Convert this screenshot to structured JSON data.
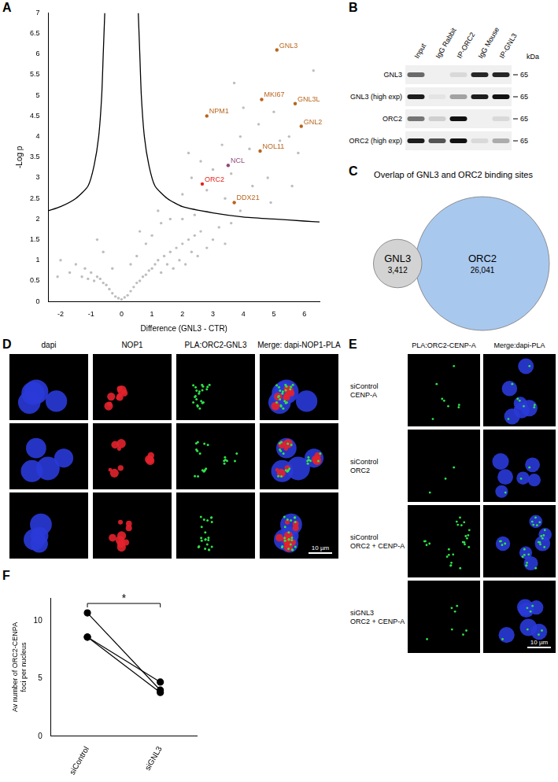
{
  "panel_letters": [
    "A",
    "B",
    "C",
    "D",
    "E",
    "F"
  ],
  "chart_data": [
    {
      "type": "scatter",
      "x_label": "Difference (GNL3 - CTR)",
      "y_label": "-Log p",
      "xlim": [
        -2.4,
        6.5
      ],
      "ylim": [
        0,
        7
      ],
      "xticks": [
        -2,
        -1,
        0,
        1,
        2,
        3,
        4,
        5,
        6
      ],
      "yticks": [
        0,
        0.5,
        1,
        1.5,
        2,
        2.5,
        3,
        3.5,
        4,
        4.5,
        5,
        5.5,
        6,
        6.5,
        7
      ],
      "grid": false,
      "series": [
        {
          "type": "scatter",
          "marker": "circle",
          "color": "#bdbdbd",
          "x": [
            0,
            0.1,
            -0.1,
            0.2,
            -0.2,
            0.3,
            -0.3,
            0.4,
            -0.4,
            0.5,
            -0.5,
            0.6,
            -0.6,
            0.7,
            -0.7,
            0.8,
            -0.8,
            0.9,
            -0.9,
            1.0,
            -1.0,
            1.1,
            -1.1,
            1.2,
            -1.2,
            1.3,
            -1.3,
            1.4,
            1.5,
            -1.5,
            1.6,
            1.7,
            1.8,
            1.9,
            2.0,
            2.1,
            2.2,
            2.3,
            2.4,
            2.5,
            2.6,
            2.8,
            3.0,
            3.2,
            3.4,
            3.6,
            -1.7,
            -2.0,
            -2.1,
            0.5,
            0.8,
            1.0,
            1.3,
            1.6,
            -0.6,
            -0.8,
            0.3,
            -0.3,
            0.6,
            1.2,
            2.0,
            2.4,
            2.0,
            2.3,
            2.6,
            3.0,
            3.3,
            3.6,
            3.9,
            4.2,
            4.5,
            4.8,
            5.0,
            5.2,
            5.5,
            3.9,
            4.3,
            2.8,
            3.4,
            4.0,
            3.7,
            5.8,
            6.3,
            2.2,
            4.9,
            5.6
          ],
          "y": [
            0.05,
            0.1,
            0.08,
            0.15,
            0.12,
            0.25,
            0.2,
            0.35,
            0.3,
            0.45,
            0.4,
            0.5,
            0.45,
            0.6,
            0.55,
            0.65,
            0.6,
            0.75,
            0.5,
            0.8,
            0.7,
            0.9,
            0.55,
            1.0,
            0.8,
            0.7,
            0.6,
            1.1,
            0.9,
            0.9,
            1.2,
            0.8,
            1.3,
            1.0,
            1.4,
            0.9,
            1.5,
            1.2,
            1.6,
            1.1,
            1.7,
            1.3,
            1.5,
            1.8,
            1.4,
            1.9,
            0.7,
            1.0,
            0.6,
            1.1,
            1.4,
            1.6,
            1.9,
            2.0,
            1.2,
            1.5,
            0.9,
            0.8,
            1.7,
            2.2,
            2.0,
            2.1,
            2.6,
            3.0,
            3.4,
            3.2,
            3.8,
            3.1,
            4.0,
            3.7,
            4.3,
            3.0,
            4.6,
            3.9,
            4.0,
            2.2,
            2.8,
            2.7,
            2.5,
            4.7,
            5.3,
            3.6,
            5.6,
            3.6,
            2.4,
            2.8
          ]
        },
        {
          "type": "line",
          "color": "#000000",
          "x": [
            0.55,
            0.6,
            0.65,
            0.75,
            0.9,
            1.1,
            1.5,
            2,
            3,
            4,
            5,
            6,
            6.5
          ],
          "y": [
            7,
            6,
            5,
            4,
            3.3,
            2.8,
            2.5,
            2.3,
            2.15,
            2.05,
            2.0,
            1.95,
            1.93
          ]
        },
        {
          "type": "line",
          "color": "#000000",
          "x": [
            -0.55,
            -0.6,
            -0.65,
            -0.75,
            -0.9,
            -1.1,
            -1.5,
            -2,
            -2.4
          ],
          "y": [
            7,
            6,
            5,
            4,
            3.3,
            2.8,
            2.5,
            2.3,
            2.2
          ]
        }
      ],
      "annotations": [
        {
          "text": "GNL3",
          "x": 5.1,
          "y": 6.1,
          "color": "#b8651e"
        },
        {
          "text": "GNL3L",
          "x": 5.7,
          "y": 4.8,
          "color": "#b8651e"
        },
        {
          "text": "MKI67",
          "x": 4.6,
          "y": 4.9,
          "color": "#b8651e"
        },
        {
          "text": "GNL2",
          "x": 5.9,
          "y": 4.25,
          "color": "#b8651e"
        },
        {
          "text": "NPM1",
          "x": 2.8,
          "y": 4.5,
          "color": "#b8651e"
        },
        {
          "text": "NOL11",
          "x": 4.55,
          "y": 3.65,
          "color": "#b8651e"
        },
        {
          "text": "NCL",
          "x": 3.5,
          "y": 3.3,
          "color": "#8e4a7a"
        },
        {
          "text": "ORC2",
          "x": 2.65,
          "y": 2.85,
          "color": "#e0241b"
        },
        {
          "text": "DDX21",
          "x": 3.7,
          "y": 2.4,
          "color": "#b8651e"
        }
      ]
    },
    {
      "type": "line",
      "y_label": "Av number of ORC2-CENPA foci per nucleus",
      "categories": [
        "siControl",
        "siGNL3"
      ],
      "series": [
        {
          "values": [
            10.7,
            4.0
          ]
        },
        {
          "values": [
            8.6,
            4.7
          ]
        },
        {
          "values": [
            8.6,
            3.8
          ]
        }
      ],
      "color": "#000000",
      "marker": "circle",
      "ylim": [
        0,
        12
      ],
      "yticks": [
        0,
        5,
        10
      ],
      "grid": false,
      "annotation": {
        "text": "*",
        "between": [
          "siControl",
          "siGNL3"
        ]
      }
    }
  ],
  "blot": {
    "lanes": [
      "Input",
      "IgG Rabbit",
      "IP-ORC2",
      "IgG Mouse",
      "IP-GNL3"
    ],
    "rows": [
      "GNL3",
      "GNL3 (high exp)",
      "ORC2",
      "ORC2 (high exp)"
    ],
    "unit": "kDa",
    "markers": [
      65,
      65,
      65,
      65
    ]
  },
  "venn": {
    "title": "Overlap of GNL3 and ORC2 binding sites",
    "sets": [
      {
        "label": "GNL3",
        "count": 3412,
        "count_label": "3,412",
        "color": "#d3d3d3"
      },
      {
        "label": "ORC2",
        "count": 26041,
        "count_label": "26,041",
        "color": "#a9c8ee"
      }
    ]
  },
  "microscopy_d": {
    "columns": [
      "dapi",
      "NOP1",
      "PLA:ORC2-GNL3",
      "Merge: dapi-NOP1-PLA"
    ],
    "rows": 3,
    "scale_bar": "10 µm"
  },
  "microscopy_e": {
    "columns": [
      "PLA:ORC2-CENP-A",
      "Merge:dapi-PLA"
    ],
    "rows": [
      [
        "siControl",
        "CENP-A"
      ],
      [
        "siControl",
        "ORC2"
      ],
      [
        "siControl",
        "ORC2 + CENP-A"
      ],
      [
        "siGNL3",
        "ORC2 + CENP-A"
      ]
    ],
    "scale_bar": "10 µm"
  }
}
